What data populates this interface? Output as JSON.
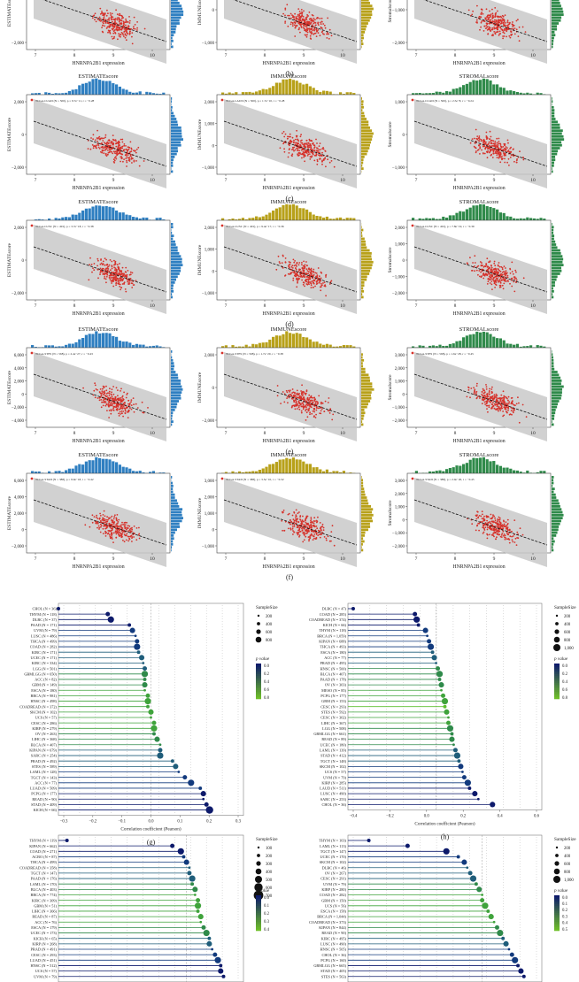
{
  "figure": {
    "scatter_rows": [
      {
        "label": "(b)",
        "panels": [
          {
            "title": "",
            "legend": "",
            "ylabel": "ESTIMATEscore",
            "ytick_labels": [
              "0",
              "−2,000"
            ],
            "xlabel": "HNRNPA2B1 expression",
            "xtick_labels": [
              "7",
              "8",
              "9",
              "10"
            ],
            "color": "#2f7fc1",
            "truncated_top": true
          },
          {
            "title": "",
            "legend": "",
            "ylabel": "IMMUNEscore",
            "ytick_labels": [
              "1,000",
              "0",
              "−1,000"
            ],
            "xlabel": "HNRNPA2B1 expression",
            "xtick_labels": [
              "7",
              "8",
              "9",
              "10"
            ],
            "color": "#b8a11a",
            "truncated_top": true
          },
          {
            "title": "",
            "legend": "",
            "ylabel": "Stromalscore",
            "ytick_labels": [
              "0",
              "−1,000",
              "−2,000"
            ],
            "xlabel": "HNRNPA2B1 expression",
            "xtick_labels": [
              "7",
              "8",
              "9",
              "10"
            ],
            "color": "#2f8a4a",
            "truncated_top": true
          }
        ]
      },
      {
        "label": "(c)",
        "panels": [
          {
            "title": "ESTIMATEscore",
            "legend": "TCGA-LUAD (N = 500), p = 9.7e−11, r = −0.28",
            "ylabel": "ESTIMATEscore",
            "ytick_labels": [
              "2,000",
              "0",
              "−2,000"
            ],
            "xlabel": "HNRNPA2B1 expression",
            "xtick_labels": [
              "7",
              "8",
              "9",
              "10"
            ],
            "color": "#2f7fc1"
          },
          {
            "title": "IMMUNEscore",
            "legend": "TCGA-LAUD (N = 500), p = 1.7e−10, r = −0.28",
            "ylabel": "IMMUNEscore",
            "ytick_labels": [
              "2,000",
              "1,000",
              "0",
              "−1,000"
            ],
            "xlabel": "HNRNPA2B1 expression",
            "xtick_labels": [
              "7",
              "8",
              "9",
              "10"
            ],
            "color": "#b8a11a"
          },
          {
            "title": "STROMALscore",
            "legend": "TCGA-LUAD (N = 500), p = 2.5e−8, r = −0.24",
            "ylabel": "Stromalscore",
            "ytick_labels": [
              "1,000",
              "0",
              "−1,000"
            ],
            "xlabel": "HNRNPA2B1 expression",
            "xtick_labels": [
              "7",
              "8",
              "9",
              "10"
            ],
            "color": "#2f8a4a"
          }
        ]
      },
      {
        "label": "(d)",
        "panels": [
          {
            "title": "ESTIMATEscore",
            "legend": "TCGA-LUSC (N = 491), p = 3.7e−18, r = −0.38",
            "ylabel": "ESTIMATEscore",
            "ytick_labels": [
              "2,000",
              "0",
              "−2,000"
            ],
            "xlabel": "HNRNPA2B1 expression",
            "xtick_labels": [
              "7",
              "8",
              "9",
              "10"
            ],
            "color": "#2f7fc1"
          },
          {
            "title": "IMMUNEscore",
            "legend": "TCGA-LUSC (N = 491), p = 9.4e−17, r = −0.36",
            "ylabel": "IMMUNEscore",
            "ytick_labels": [
              "2,000",
              "1,000",
              "0",
              "−1,000"
            ],
            "xlabel": "HNRNPA2B1 expression",
            "xtick_labels": [
              "7",
              "8",
              "9",
              "10"
            ],
            "color": "#b8a11a"
          },
          {
            "title": "STROMALscore",
            "legend": "TCGA-LUSC (N = 491), p = 7.8e−19, r = −0.39",
            "ylabel": "Stromalscore",
            "ytick_labels": [
              "2,000",
              "1,000",
              "0",
              "−1,000",
              "−2,000"
            ],
            "xlabel": "HNRNPA2B1 expression",
            "xtick_labels": [
              "7",
              "8",
              "9",
              "10"
            ],
            "color": "#2f8a4a"
          }
        ]
      },
      {
        "label": "(e)",
        "panels": [
          {
            "title": "ESTIMATEscore",
            "legend": "TCGA-STES (N = 568), p = 2.4e−27, r = −0.43",
            "ylabel": "ESTIMATEscore",
            "ytick_labels": [
              "6,000",
              "4,000",
              "2,000",
              "0",
              "−2,000",
              "−4,000"
            ],
            "xlabel": "HNRNPA2B1 expression",
            "xtick_labels": [
              "7",
              "8",
              "9",
              "10"
            ],
            "color": "#2f7fc1"
          },
          {
            "title": "IMMUNEscore",
            "legend": "TCGA-STES (N = 568), p = 1.7e−20, r = −0.38",
            "ylabel": "IMMUNEscore",
            "ytick_labels": [
              "2,000",
              "0",
              "−2,000"
            ],
            "xlabel": "HNRNPA2B1 expression",
            "xtick_labels": [
              "7",
              "8",
              "9",
              "10"
            ],
            "color": "#b8a11a"
          },
          {
            "title": "STROMALscore",
            "legend": "TCGA-STES (N = 568), p = 1.6e−28, r = −0.45",
            "ylabel": "Stromalscore",
            "ytick_labels": [
              "3,000",
              "2,000",
              "1,000",
              "0",
              "−1,000",
              "−2,000"
            ],
            "xlabel": "HNRNPA2B1 expression",
            "xtick_labels": [
              "7",
              "8",
              "9",
              "10"
            ],
            "color": "#2f8a4a"
          }
        ]
      },
      {
        "label": "(f)",
        "panels": [
          {
            "title": "ESTIMATEscore",
            "legend": "TCGA-STAD (N = 388), p = 9.9e−18, r = −0.42",
            "ylabel": "ESTIMATEscore",
            "ytick_labels": [
              "6,000",
              "4,000",
              "2,000",
              "0",
              "−2,000"
            ],
            "xlabel": "HNRNPA2B1 expression",
            "xtick_labels": [
              "7",
              "8",
              "9",
              "10"
            ],
            "color": "#2f7fc1"
          },
          {
            "title": "IMMUNEscore",
            "legend": "TCGA-STAD (N = 388), p = 3.5e−10, r = −0.32",
            "ylabel": "IMMUNEscore",
            "ytick_labels": [
              "3,000",
              "2,000",
              "1,000",
              "0",
              "−1,000"
            ],
            "xlabel": "HNRNPA2B1 expression",
            "xtick_labels": [
              "7",
              "8",
              "9",
              "10"
            ],
            "color": "#b8a11a"
          },
          {
            "title": "STROMALscore",
            "legend": "TCGA-STAD (N = 388), p = 2.0e−20, r = −0.45",
            "ylabel": "Stromalscore",
            "ytick_labels": [
              "3,000",
              "2,000",
              "1,000",
              "0",
              "−1,000",
              "−2,000"
            ],
            "xlabel": "HNRNPA2B1 expression",
            "xtick_labels": [
              "7",
              "8",
              "9",
              "10"
            ],
            "color": "#2f8a4a"
          }
        ]
      }
    ],
    "lollipop_panels": [
      {
        "label": "(g)",
        "xlabel": "Correlation coefficient (Pearson)",
        "xtick_labels": [
          "−0.3",
          "−0.2",
          "−0.1",
          "0.0",
          "0.1",
          "0.2",
          "0.3"
        ],
        "size_legend_title": "SampleSize",
        "size_legend_labels": [
          "200",
          "400",
          "600",
          "800"
        ],
        "p_legend_title": "p value",
        "p_legend_labels": [
          "0.0",
          "0.2",
          "0.4",
          "0.6",
          "0.8"
        ]
      },
      {
        "label": "(h)",
        "xlabel": "Correlation coefficient (Pearson)",
        "xtick_labels": [
          "−0.4",
          "−0.2",
          "0.0",
          "0.2",
          "0.4",
          "0.6"
        ],
        "size_legend_title": "SampleSize",
        "size_legend_labels": [
          "200",
          "400",
          "600",
          "800",
          "1,000"
        ],
        "p_legend_title": "p value",
        "p_legend_labels": [
          "0.0",
          "0.2",
          "0.4",
          "0.6",
          "0.8"
        ]
      },
      {
        "label": "",
        "xlabel": "",
        "xtick_labels": [],
        "size_legend_title": "SampleSize",
        "size_legend_labels": [
          "100",
          "200",
          "300",
          "400",
          "500",
          "600",
          "700"
        ],
        "p_legend_title": "p value",
        "p_legend_labels": [
          "0.0",
          "0.1",
          "0.2",
          "0.3",
          "0.4"
        ]
      },
      {
        "label": "",
        "xlabel": "",
        "xtick_labels": [],
        "size_legend_title": "SampleSize",
        "size_legend_labels": [
          "200",
          "400",
          "600",
          "800",
          "1,000"
        ],
        "p_legend_title": "p value",
        "p_legend_labels": [
          "0.0",
          "0.1",
          "0.2",
          "0.3",
          "0.4",
          "0.5"
        ]
      }
    ]
  },
  "chart_data": [
    {
      "type": "lollipop",
      "panel": "(g)",
      "xlabel": "Correlation coefficient (Pearson)",
      "xlim": [
        -0.3,
        0.3
      ],
      "categories": [
        "CHOL (N = 36)",
        "THYM (N = 118)",
        "DLBC (N = 37)",
        "PAAD (N = 171)",
        "UVM (N = 79)",
        "LUSC (N = 486)",
        "THCA (N = 499)",
        "COAD (N = 282)",
        "KIRC (N = 171)",
        "UCEC (N = 171)",
        "KIRC (N = 334)",
        "LGG (N = 501)",
        "GBMLGG (N = 650)",
        "ACC (N = 82)",
        "GBM (N = 149)",
        "ESCA (N = 180)",
        "BRCA (N = 981)",
        "HNSC (N = 498)",
        "COADREAD (N = 372)",
        "SKCM (N = 102)",
        "UCS (N = 57)",
        "CESC (N = 286)",
        "KIRP (N = 279)",
        "OV (N = 263)",
        "LIHC (N = 368)",
        "BLCA (N = 407)",
        "KIPAN (N = 679)",
        "SARC (N = 254)",
        "PRAD (N = 492)",
        "STES (N = 589)",
        "LAML (N = 128)",
        "TGCT (N = 143)",
        "ACC (N = 77)",
        "LUAD (N = 509)",
        "PCPG (N = 177)",
        "READ (N = 90)",
        "STAD (N = 409)",
        "KICH (N = 66)"
      ],
      "values": [
        -0.3,
        -0.14,
        -0.13,
        -0.07,
        -0.06,
        -0.05,
        -0.045,
        -0.045,
        -0.04,
        -0.03,
        -0.025,
        -0.02,
        -0.02,
        -0.02,
        -0.02,
        -0.02,
        -0.01,
        -0.01,
        -0.01,
        0.0,
        0.0,
        0.01,
        0.01,
        0.01,
        0.02,
        0.03,
        0.03,
        0.03,
        0.07,
        0.08,
        0.09,
        0.11,
        0.13,
        0.16,
        0.17,
        0.17,
        0.18,
        0.19
      ]
    },
    {
      "type": "lollipop",
      "panel": "(h)",
      "xlabel": "Correlation coefficient (Pearson)",
      "xlim": [
        -0.5,
        0.6
      ],
      "categories": [
        "DLBC (N = 47)",
        "COAD (N = 285)",
        "COADREAD (N = 374)",
        "KICH (N = 66)",
        "THYM (N = 118)",
        "BRCA (N = 1,059)",
        "KIPAN (N = 688)",
        "THCA (N = 493)",
        "ESCA (N = 180)",
        "ACC (N = 77)",
        "PRAD (N = 495)",
        "HNSC (N = 500)",
        "BLCA (N = 407)",
        "PAAD (N = 178)",
        "OV (N = 303)",
        "MESO (N = 85)",
        "PCPG (N = 177)",
        "GBM (N = 153)",
        "CESC (N = 293)",
        "STES (N = 592)",
        "CESC (N = 302)",
        "LIHC (N = 367)",
        "LGG (N = 508)",
        "GBMLGG (N = 661)",
        "READ (N = 89)",
        "UCEC (N = 180)",
        "LAML (N = 139)",
        "STAD (N = 412)",
        "TGCT (N = 148)",
        "SKCM (N = 102)",
        "UCS (N = 57)",
        "UVM (N = 79)",
        "KIRP (N = 285)",
        "LAUD (N = 511)",
        "LUSC (N = 490)",
        "SARC (N = 253)",
        "CHOL (N = 36)"
      ],
      "values": [
        -0.47,
        -0.12,
        -0.11,
        -0.1,
        -0.06,
        -0.05,
        -0.04,
        -0.03,
        -0.02,
        -0.01,
        0.0,
        0.01,
        0.02,
        0.02,
        0.03,
        0.03,
        0.04,
        0.05,
        0.05,
        0.06,
        0.07,
        0.07,
        0.08,
        0.09,
        0.09,
        0.1,
        0.11,
        0.12,
        0.13,
        0.14,
        0.15,
        0.16,
        0.18,
        0.19,
        0.22,
        0.24,
        0.32
      ]
    },
    {
      "type": "lollipop",
      "panel": "",
      "categories": [
        "THYM (N = 119)",
        "KIPAN (N = 662)",
        "COAD (N = 271)",
        "ACBO (N = 87)",
        "THCA (N = 499)",
        "COADREAD (N = 358)",
        "TGCT (N = 147)",
        "PAAD (N = 176)",
        "LAML (N = 170)",
        "BLCA (N = 403)",
        "BRCA (N = 774)",
        "KIRC (N = 309)",
        "GBM (N = 51)",
        "LIHC (N = 366)",
        "READ (N = 87)",
        "ACC (N = 76)",
        "ESCA (N = 179)",
        "UCEC (N = 173)",
        "KICH (N = 65)",
        "KIRP (N = 268)",
        "PRAD (N = 491)",
        "CESC (N = 293)",
        "LUAD (N = 451)",
        "HNSC (N = 512)",
        "UCS (N = 57)",
        "UVM (N = 79)"
      ],
      "values": [
        -0.42,
        -0.05,
        -0.02,
        -0.01,
        0.0,
        0.01,
        0.01,
        0.02,
        0.02,
        0.03,
        0.03,
        0.04,
        0.04,
        0.04,
        0.05,
        0.05,
        0.06,
        0.07,
        0.08,
        0.08,
        0.09,
        0.1,
        0.11,
        0.12,
        0.12,
        0.13
      ]
    },
    {
      "type": "lollipop",
      "panel": "",
      "categories": [
        "THYM (N = 103)",
        "LAML (N = 113)",
        "TGCT (N = 147)",
        "UCEC (N = 170)",
        "SKCM (N = 102)",
        "DLBC (N = 46)",
        "OV (N = 267)",
        "CESC (N = 291)",
        "UVM (N = 79)",
        "KIRP (N = 280)",
        "COAD (N = 282)",
        "GBM (N = 150)",
        "UCS (N = 56)",
        "ESCA (N = 158)",
        "BRCA (N = 1,044)",
        "COADREAD (N = 373)",
        "KIPAN (N = 844)",
        "READ (N = 90)",
        "KIRC (N = 495)",
        "LUSC (N = 490)",
        "HNSC (N = 505)",
        "CHOL (N = 36)",
        "PCPG (N = 160)",
        "GBMLGG (N = 665)",
        "STAD (N = 405)",
        "STES (N = 563)"
      ],
      "values": [
        -0.38,
        -0.25,
        -0.12,
        -0.08,
        -0.06,
        -0.05,
        -0.04,
        -0.03,
        -0.02,
        -0.01,
        0.0,
        0.0,
        0.01,
        0.02,
        0.03,
        0.04,
        0.05,
        0.06,
        0.07,
        0.08,
        0.09,
        0.1,
        0.11,
        0.12,
        0.13,
        0.14
      ]
    }
  ]
}
